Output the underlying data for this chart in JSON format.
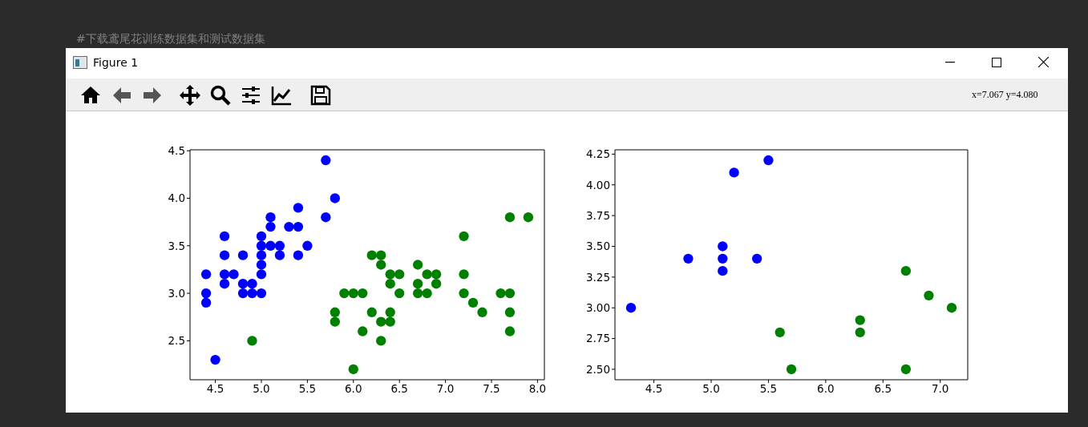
{
  "chart_data": [
    {
      "type": "scatter",
      "annotations": [
        "Figure 1",
        "x=7.067 y=4.080",
        "#下载鸢尾花训练数据集和测试数据集"
      ],
      "xlim": [
        4.225,
        8.075
      ],
      "ylim": [
        2.09,
        4.51
      ],
      "xticks": [
        4.5,
        {
          "value": 5,
          "label": "5.0"
        },
        5.5,
        {
          "value": 6,
          "label": "6.0"
        },
        6.5,
        {
          "value": 7,
          "label": "7.0"
        },
        7.5,
        {
          "value": 8,
          "label": "8.0"
        }
      ],
      "yticks": [
        2.5,
        {
          "value": 3,
          "label": "3.0"
        },
        3.5,
        {
          "value": 4,
          "label": "4.0"
        },
        4.5
      ],
      "grid": false,
      "marker": "circle",
      "series": [
        {
          "color": "#0000ff",
          "x": [
            4.4,
            4.4,
            4.4,
            4.5,
            4.6,
            4.6,
            4.6,
            4.6,
            4.7,
            4.8,
            4.8,
            4.8,
            4.9,
            4.9,
            5.0,
            5.0,
            5.0,
            5.0,
            5.0,
            5.0,
            5.1,
            5.1,
            5.1,
            5.2,
            5.2,
            5.3,
            5.4,
            5.4,
            5.4,
            5.5,
            5.7,
            5.7,
            5.8
          ],
          "values": [
            3.2,
            3.0,
            2.9,
            2.3,
            3.6,
            3.4,
            3.2,
            3.1,
            3.2,
            3.4,
            3.1,
            3.0,
            3.1,
            3.0,
            3.6,
            3.5,
            3.4,
            3.3,
            3.2,
            3.0,
            3.8,
            3.7,
            3.5,
            3.5,
            3.4,
            3.7,
            3.9,
            3.7,
            3.4,
            3.5,
            4.4,
            3.8,
            4.0
          ]
        },
        {
          "color": "#008000",
          "x": [
            4.9,
            5.8,
            5.8,
            5.9,
            6.0,
            6.0,
            6.1,
            6.1,
            6.2,
            6.2,
            6.3,
            6.3,
            6.3,
            6.3,
            6.4,
            6.4,
            6.4,
            6.4,
            6.5,
            6.5,
            6.7,
            6.7,
            6.7,
            6.8,
            6.8,
            6.9,
            6.9,
            7.2,
            7.2,
            7.2,
            7.3,
            7.4,
            7.6,
            7.7,
            7.7,
            7.7,
            7.7,
            7.9
          ],
          "values": [
            2.5,
            2.8,
            2.7,
            3.0,
            3.0,
            2.2,
            3.0,
            2.6,
            3.4,
            2.8,
            3.4,
            3.3,
            2.7,
            2.5,
            3.2,
            3.1,
            2.8,
            2.7,
            3.2,
            3.0,
            3.3,
            3.1,
            3.0,
            3.2,
            3.0,
            3.2,
            3.1,
            3.6,
            3.2,
            3.0,
            2.9,
            2.8,
            3.0,
            3.8,
            3.0,
            2.8,
            2.6,
            3.8
          ]
        }
      ]
    },
    {
      "type": "scatter",
      "xlim": [
        4.16,
        7.24
      ],
      "ylim": [
        2.415,
        4.285
      ],
      "xticks": [
        4.5,
        {
          "value": 5,
          "label": "5.0"
        },
        5.5,
        {
          "value": 6,
          "label": "6.0"
        },
        6.5,
        {
          "value": 7,
          "label": "7.0"
        }
      ],
      "yticks": [
        {
          "value": 2.5,
          "label": "2.50"
        },
        {
          "value": 2.75,
          "label": "2.75"
        },
        {
          "value": 3,
          "label": "3.00"
        },
        {
          "value": 3.25,
          "label": "3.25"
        },
        {
          "value": 3.5,
          "label": "3.50"
        },
        {
          "value": 3.75,
          "label": "3.75"
        },
        {
          "value": 4,
          "label": "4.00"
        },
        {
          "value": 4.25,
          "label": "4.25"
        }
      ],
      "grid": false,
      "marker": "circle",
      "series": [
        {
          "color": "#0000ff",
          "x": [
            4.3,
            4.8,
            5.1,
            5.1,
            5.1,
            5.2,
            5.4,
            5.5
          ],
          "values": [
            3.0,
            3.4,
            3.5,
            3.4,
            3.3,
            4.1,
            3.4,
            4.2
          ]
        },
        {
          "color": "#008000",
          "x": [
            5.6,
            5.7,
            6.3,
            6.3,
            6.7,
            6.7,
            6.9,
            7.1
          ],
          "values": [
            2.8,
            2.5,
            2.9,
            2.8,
            3.3,
            2.5,
            3.1,
            3.0
          ]
        }
      ]
    }
  ]
}
